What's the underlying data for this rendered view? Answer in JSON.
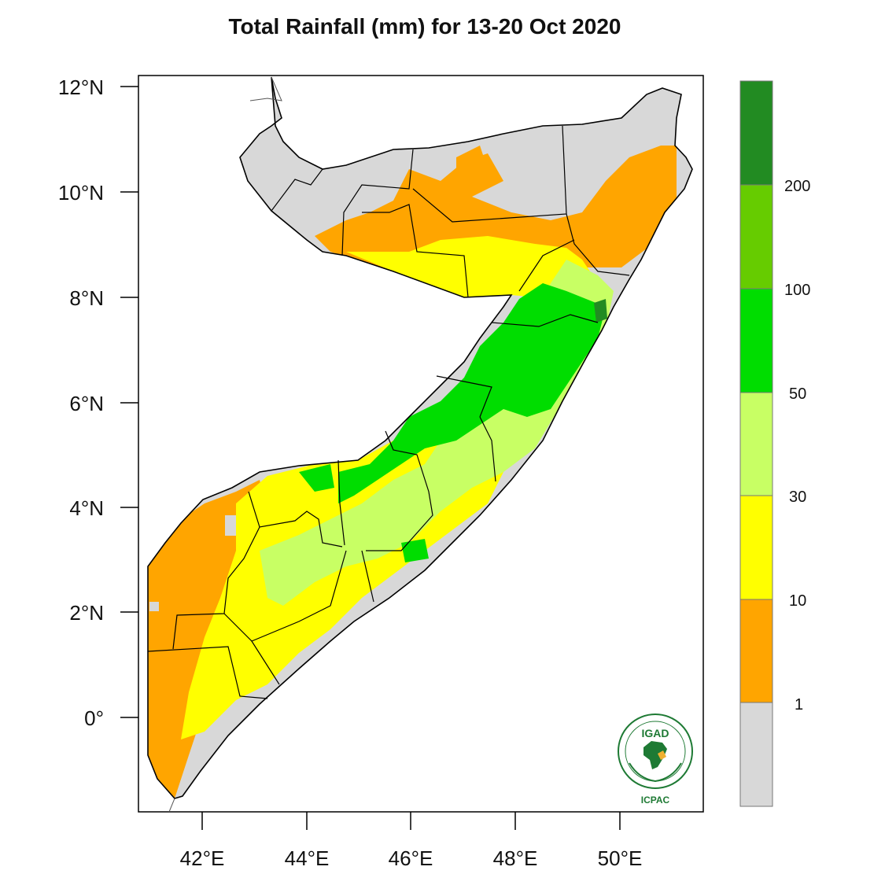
{
  "title": "Total Rainfall (mm) for 13-20 Oct 2020",
  "axes": {
    "x_ticks": [
      "42°E",
      "44°E",
      "46°E",
      "48°E",
      "50°E"
    ],
    "y_ticks": [
      "12°N",
      "10°N",
      "8°N",
      "6°N",
      "4°N",
      "2°N",
      "0°"
    ]
  },
  "legend": {
    "boundaries": [
      "200",
      "100",
      "50",
      "30",
      "10",
      "1"
    ],
    "colors": [
      "#228B22",
      "#66CC00",
      "#00DD00",
      "#C8FF64",
      "#FFFF00",
      "#FFA500",
      "#D8D8D8"
    ]
  },
  "logo": {
    "name": "IGAD",
    "org": "ICPAC",
    "icon": "igad-emblem-icon"
  }
}
